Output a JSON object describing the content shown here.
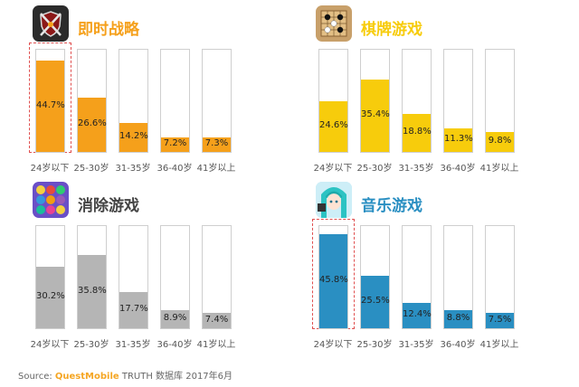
{
  "chart_data": [
    {
      "type": "bar",
      "title": "即时战略",
      "categories": [
        "24岁以下",
        "25-30岁",
        "31-35岁",
        "36-40岁",
        "41岁以上"
      ],
      "values": [
        44.7,
        26.6,
        14.2,
        7.2,
        7.3
      ],
      "value_labels": [
        "44.7%",
        "26.6%",
        "14.2%",
        "7.2%",
        "7.3%"
      ],
      "ylim": [
        0,
        50
      ],
      "color": "#f5a01b",
      "highlighted_category": "24岁以下",
      "icon": "crossed-swords-shield-icon"
    },
    {
      "type": "bar",
      "title": "棋牌游戏",
      "categories": [
        "24岁以下",
        "25-30岁",
        "31-35岁",
        "36-40岁",
        "41岁以上"
      ],
      "values": [
        24.6,
        35.4,
        18.8,
        11.3,
        9.8
      ],
      "value_labels": [
        "24.6%",
        "35.4%",
        "18.8%",
        "11.3%",
        "9.8%"
      ],
      "ylim": [
        0,
        50
      ],
      "color": "#f7cc0c",
      "highlighted_category": "",
      "icon": "go-board-icon"
    },
    {
      "type": "bar",
      "title": "消除游戏",
      "categories": [
        "24岁以下",
        "25-30岁",
        "31-35岁",
        "36-40岁",
        "41岁以上"
      ],
      "values": [
        30.2,
        35.8,
        17.7,
        8.9,
        7.4
      ],
      "value_labels": [
        "30.2%",
        "35.8%",
        "17.7%",
        "8.9%",
        "7.4%"
      ],
      "ylim": [
        0,
        50
      ],
      "color": "#b5b5b5",
      "highlighted_category": "",
      "icon": "candy-match-icon"
    },
    {
      "type": "bar",
      "title": "音乐游戏",
      "categories": [
        "24岁以下",
        "25-30岁",
        "31-35岁",
        "36-40岁",
        "41岁以上"
      ],
      "values": [
        45.8,
        25.5,
        12.4,
        8.8,
        7.5
      ],
      "value_labels": [
        "45.8%",
        "25.5%",
        "12.4%",
        "8.8%",
        "7.5%"
      ],
      "ylim": [
        0,
        50
      ],
      "color": "#2a8fc2",
      "highlighted_category": "24岁以下",
      "icon": "anime-girl-icon"
    }
  ],
  "footer": {
    "source_label": "Source:",
    "brand": "QuestMobile",
    "rest": "TRUTH 数据库 2017年6月"
  }
}
